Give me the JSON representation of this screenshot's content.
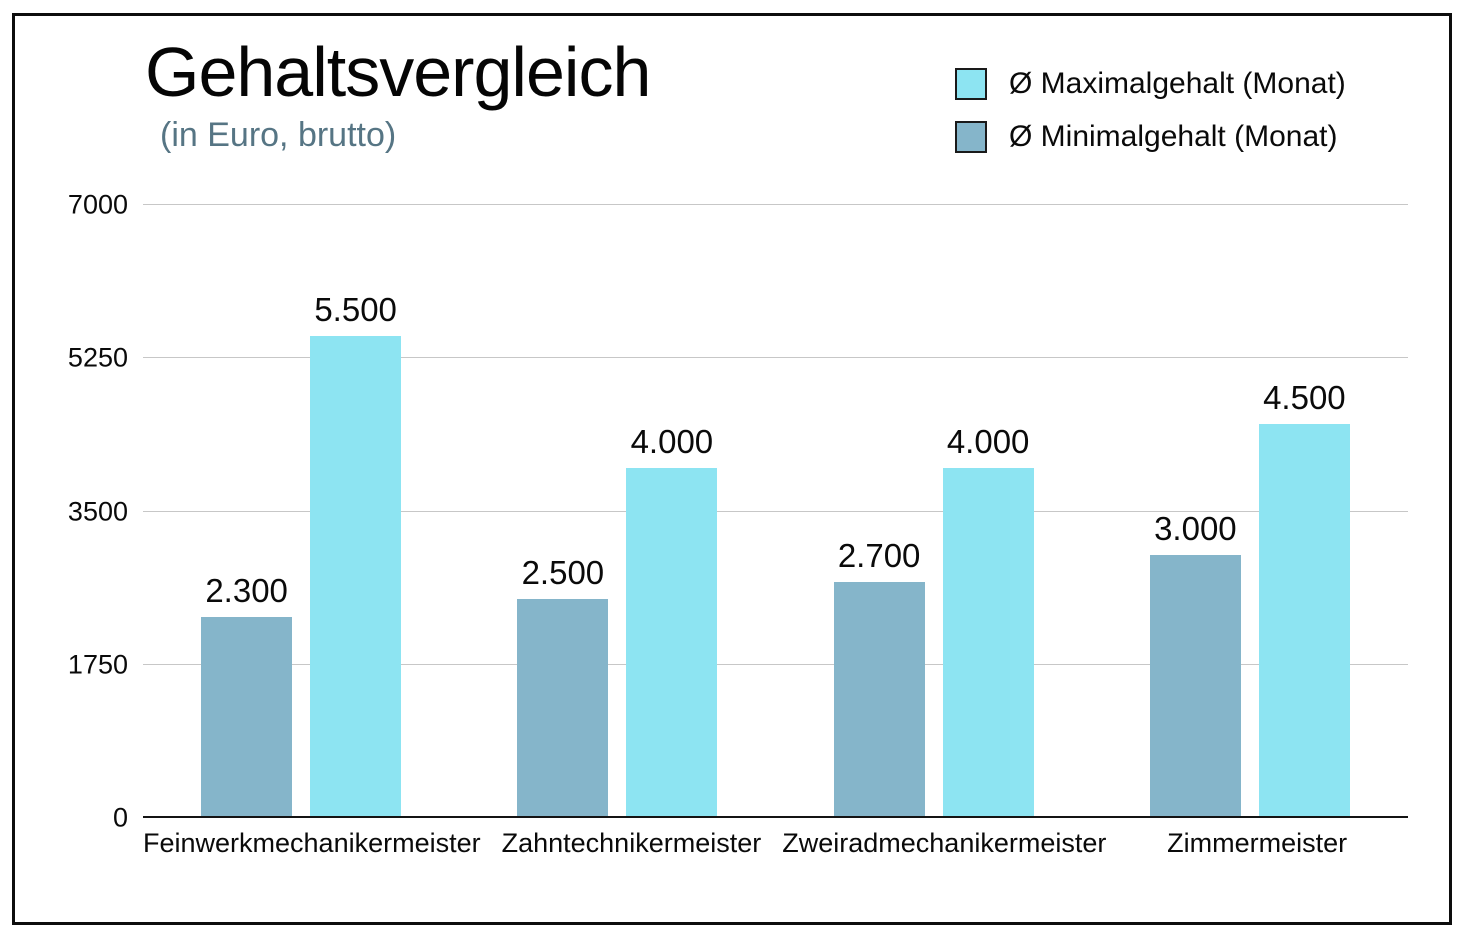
{
  "header": {
    "title": "Gehaltsvergleich",
    "subtitle": "(in Euro, brutto)"
  },
  "legend": [
    {
      "label": "Ø Maximalgehalt (Monat)",
      "color": "#8de4f2"
    },
    {
      "label": "Ø Minimalgehalt (Monat)",
      "color": "#85b5ca"
    }
  ],
  "colors": {
    "max_bar": "#8de4f2",
    "min_bar": "#85b5ca",
    "subtitle_text": "#567584",
    "gridline": "#c7c7c7",
    "baseline": "#141414",
    "frame_border": "#0d0d0d"
  },
  "chart_data": {
    "type": "bar",
    "title": "Gehaltsvergleich",
    "subtitle": "(in Euro, brutto)",
    "categories": [
      "Feinwerkmechanikermeister",
      "Zahntechnikermeister",
      "Zweiradmechanikermeister",
      "Zimmermeister"
    ],
    "series": [
      {
        "name": "Ø Minimalgehalt (Monat)",
        "color": "#85b5ca",
        "values": [
          2300,
          2500,
          2700,
          3000
        ],
        "labels": [
          "2.300",
          "2.500",
          "2.700",
          "3.000"
        ]
      },
      {
        "name": "Ø Maximalgehalt (Monat)",
        "color": "#8de4f2",
        "values": [
          5500,
          4000,
          4000,
          4500
        ],
        "labels": [
          "5.500",
          "4.000",
          "4.000",
          "4.500"
        ]
      }
    ],
    "ylim": [
      0,
      7000
    ],
    "yticks": [
      0,
      1750,
      3500,
      5250,
      7000
    ],
    "ytick_labels": [
      "0",
      "1750",
      "3500",
      "5250",
      "7000"
    ],
    "grid": true,
    "legend_position": "top-right"
  }
}
